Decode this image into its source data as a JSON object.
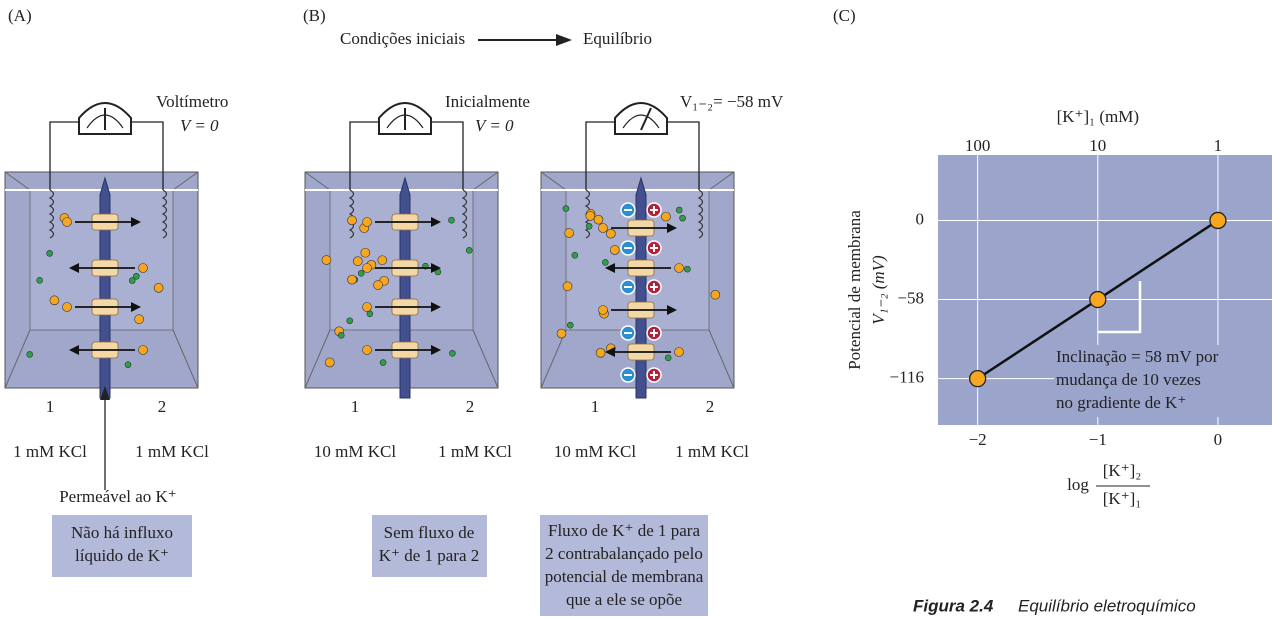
{
  "panel_a": {
    "label": "(A)",
    "meter_label": "Voltímetro",
    "meter_value": "V = 0",
    "compartments": [
      "1",
      "2"
    ],
    "solutions": [
      "1 mM KCl",
      "1 mM KCl"
    ],
    "membrane_label": "Permeável ao K⁺",
    "caption": [
      "Não há influxo",
      "líquido de K⁺"
    ]
  },
  "panel_b": {
    "label": "(B)",
    "header_start": "Condições iniciais",
    "header_end": "Equilíbrio",
    "initial": {
      "meter_label": "Inicialmente",
      "meter_value": "V = 0",
      "compartments": [
        "1",
        "2"
      ],
      "solutions": [
        "10 mM KCl",
        "1 mM KCl"
      ],
      "caption": [
        "Sem fluxo de",
        "K⁺ de 1 para 2"
      ]
    },
    "equilibrium": {
      "meter_label": "V₁₋₂= −58 mV",
      "compartments": [
        "1",
        "2"
      ],
      "solutions": [
        "10 mM KCl",
        "1 mM KCl"
      ],
      "caption": [
        "Fluxo de K⁺ de 1 para",
        "2 contrabalançado pelo",
        "potencial de membrana",
        "que a ele se opõe"
      ]
    }
  },
  "chart_data": {
    "type": "line",
    "label": "(C)",
    "x2_label": "[K⁺]₁ (mM)",
    "y_label": [
      "Potencial de membrana",
      "V₁₋₂ (mV)"
    ],
    "x_label": {
      "prefix": "log",
      "numerator": "[K⁺]₂",
      "denominator": "[K⁺]₁"
    },
    "annotation": [
      "Inclinação = 58 mV por",
      "mudança de 10 vezes",
      "no gradiente de K⁺"
    ],
    "x": [
      -2,
      -1,
      0
    ],
    "series": [
      {
        "color": "#f6a71f",
        "values": [
          -116,
          -58,
          0
        ]
      }
    ],
    "xlim": [
      -2.33,
      0.45
    ],
    "ylim": [
      -150,
      48
    ],
    "xticks": [
      {
        "value": -2,
        "label": "−2"
      },
      {
        "value": -1,
        "label": "−1"
      },
      0
    ],
    "x2ticks": [
      {
        "value": -2,
        "label": "100"
      },
      {
        "value": -1,
        "label": "10"
      },
      {
        "value": 0,
        "label": "1"
      }
    ],
    "yticks": [
      {
        "value": -116,
        "label": "−116"
      },
      {
        "value": -58,
        "label": "−58"
      },
      0
    ],
    "grid": true
  },
  "figure_caption": {
    "number": "Figura 2.4",
    "text": "Equilíbrio eletroquímico"
  }
}
